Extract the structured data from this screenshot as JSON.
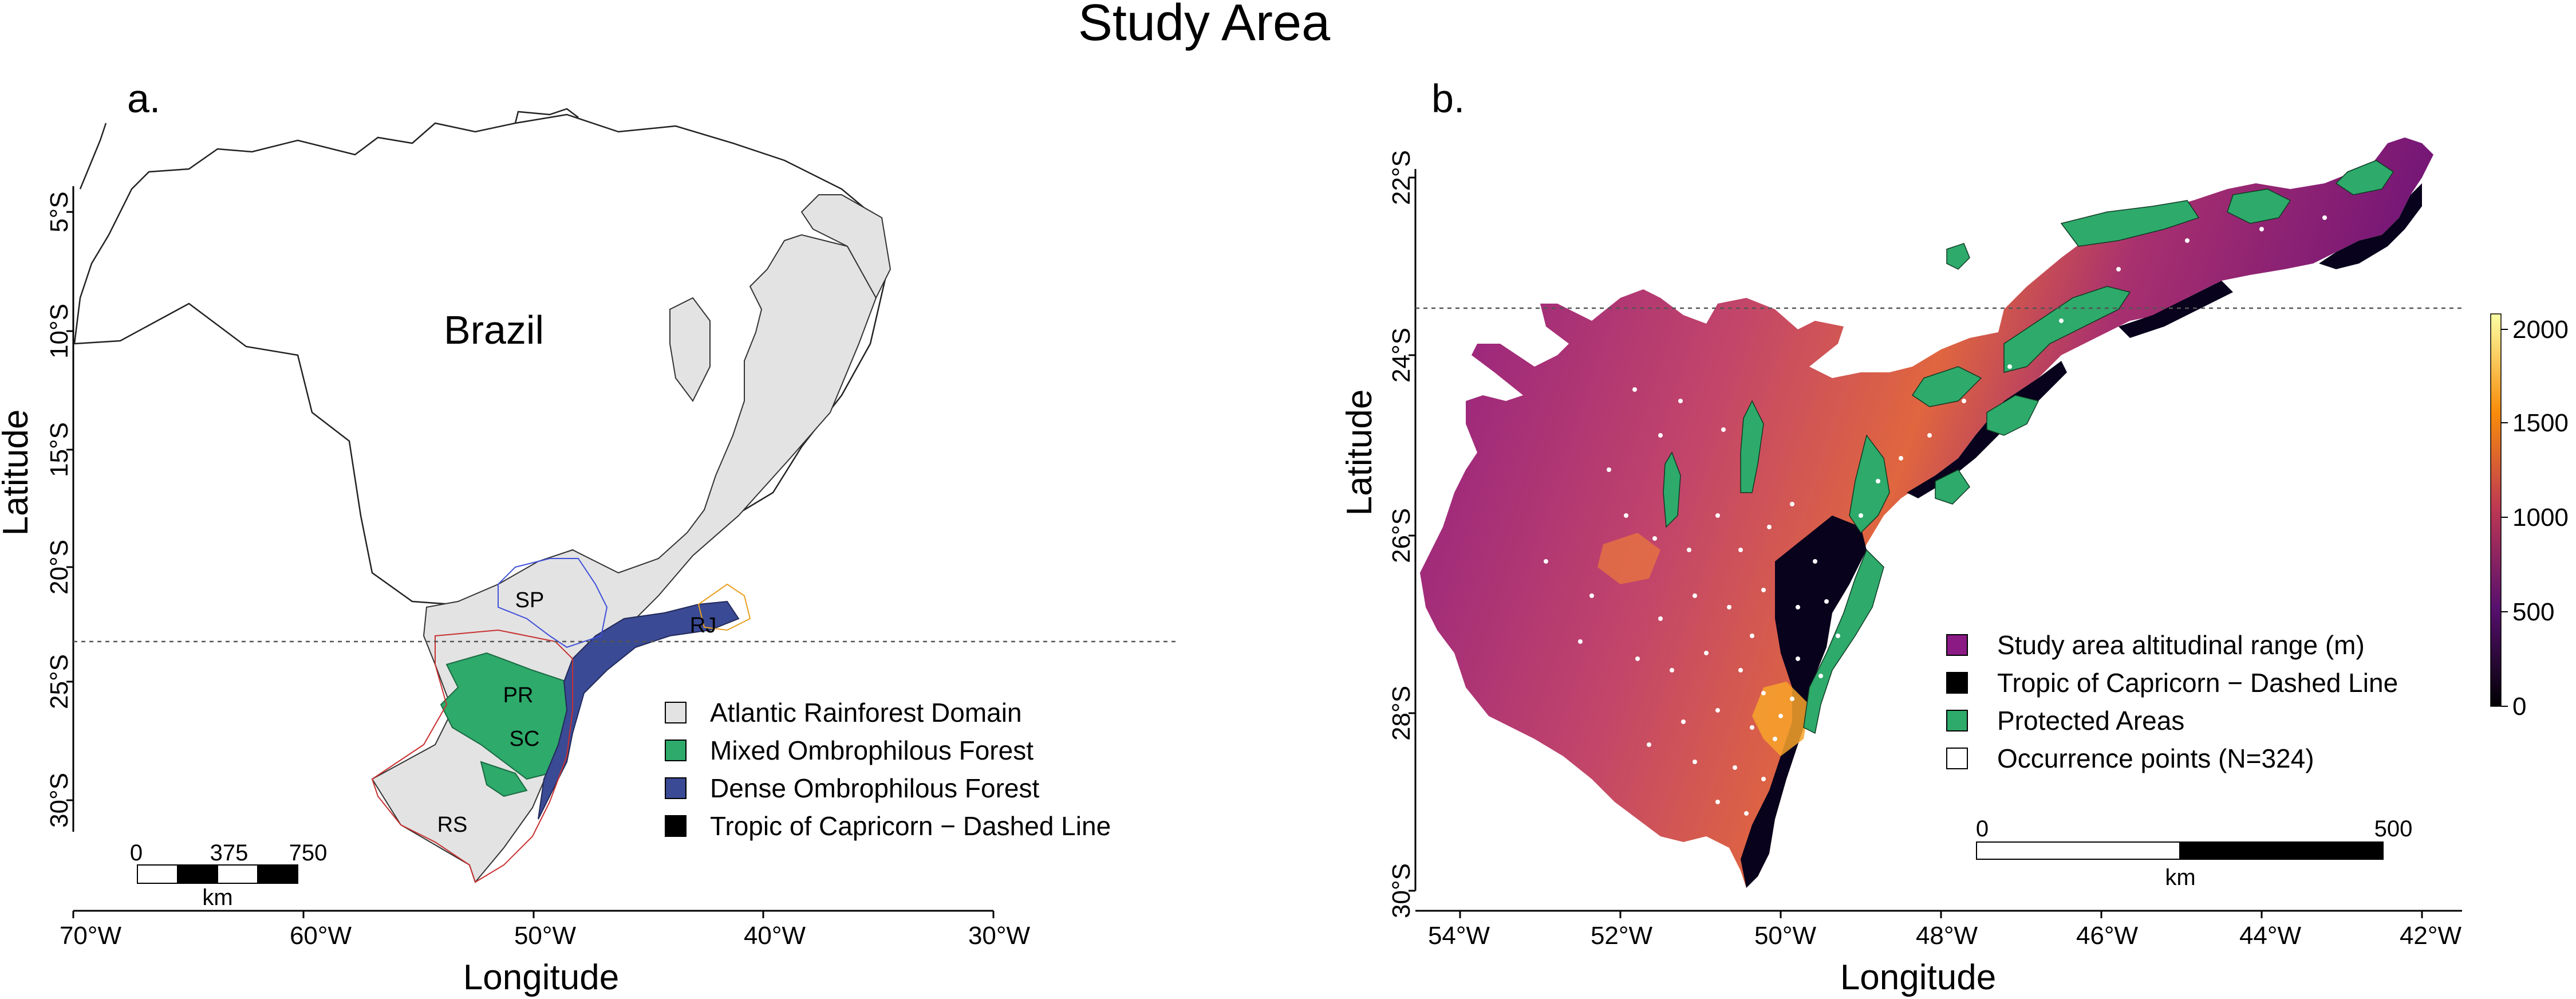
{
  "title": "Study Area",
  "panel_a": {
    "label": "a.",
    "x_axis_title": "Longitude",
    "y_axis_title": "Latitude",
    "x_ticks": [
      "70°W",
      "60°W",
      "50°W",
      "40°W",
      "30°W"
    ],
    "y_ticks": [
      "5°S",
      "10°S",
      "15°S",
      "20°S",
      "25°S",
      "30°S"
    ],
    "country_label": "Brazil",
    "state_labels": [
      "SP",
      "RJ",
      "PR",
      "SC",
      "RS"
    ],
    "legend": [
      {
        "label": "Atlantic Rainforest Domain",
        "color": "#e3e3e3"
      },
      {
        "label": "Mixed Ombrophilous Forest",
        "color": "#2eaa6b"
      },
      {
        "label": "Dense Ombrophilous Forest",
        "color": "#3a4a94"
      },
      {
        "label": "Tropic of Capricorn − Dashed Line",
        "color": "#000000"
      }
    ],
    "scale_bar": {
      "ticks": [
        "0",
        "375",
        "750"
      ],
      "unit": "km"
    }
  },
  "panel_b": {
    "label": "b.",
    "x_axis_title": "Longitude",
    "y_axis_title": "Latitude",
    "x_ticks": [
      "54°W",
      "52°W",
      "50°W",
      "48°W",
      "46°W",
      "44°W",
      "42°W"
    ],
    "y_ticks": [
      "22°S",
      "24°S",
      "26°S",
      "28°S",
      "30°S"
    ],
    "legend": [
      {
        "label": "Study area altitudinal range (m)",
        "color": "#8b1a85"
      },
      {
        "label": "Tropic of Capricorn − Dashed Line",
        "color": "#000000"
      },
      {
        "label": "Protected Areas",
        "color": "#2eaa6b"
      },
      {
        "label": "Occurrence points (N=324)",
        "color": "#ffffff"
      }
    ],
    "colorbar": {
      "ticks": [
        "2000",
        "1500",
        "1000",
        "500",
        "0"
      ],
      "colors": [
        "#fcffa4",
        "#f98c0a",
        "#bc3754",
        "#57106e",
        "#000004"
      ]
    },
    "scale_bar": {
      "ticks": [
        "0",
        "500"
      ],
      "unit": "km"
    }
  }
}
